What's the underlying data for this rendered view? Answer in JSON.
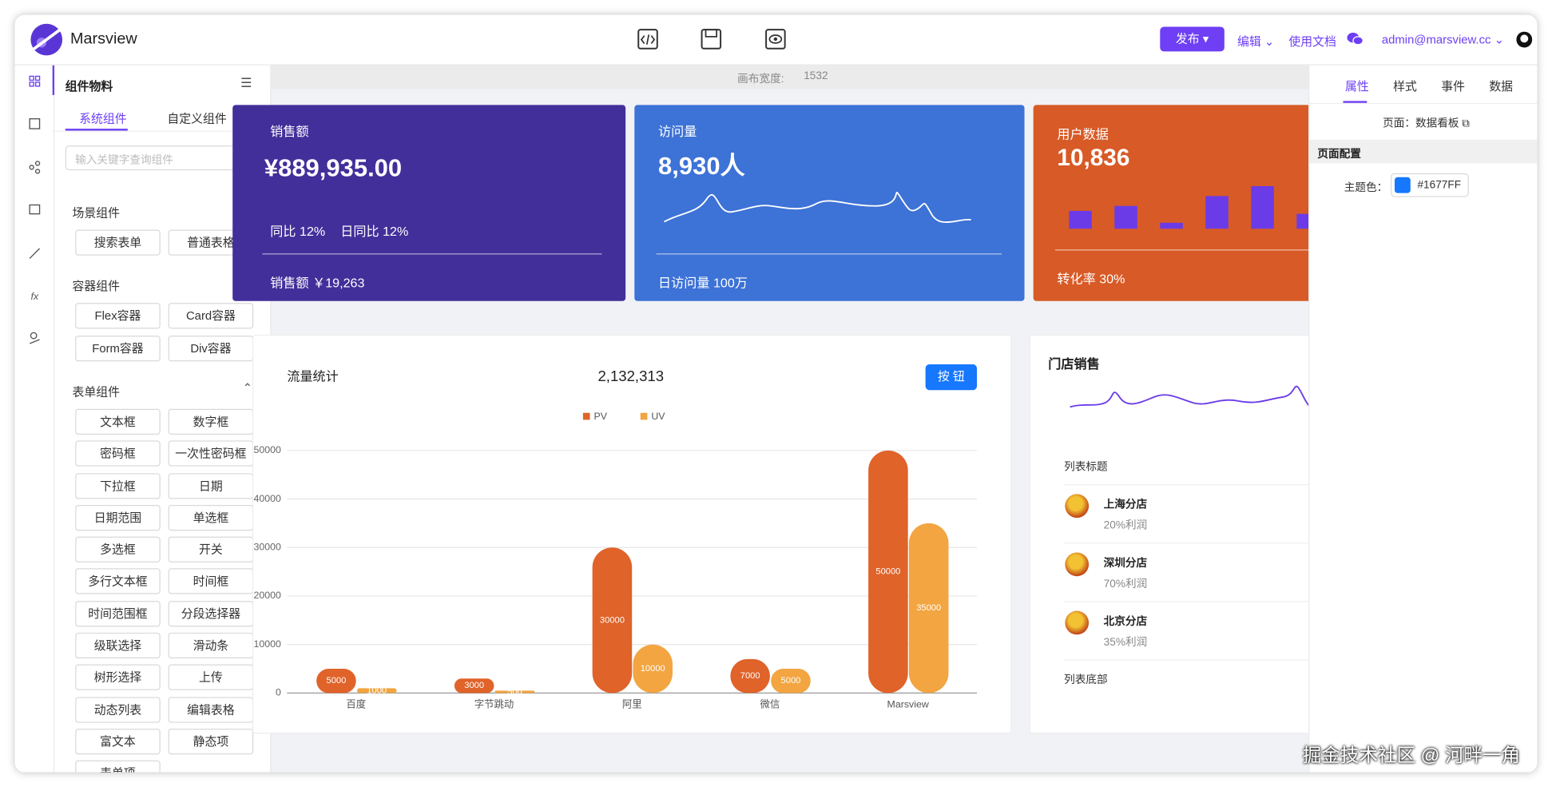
{
  "header": {
    "brand": "Marsview",
    "publish": "发布",
    "edit": "编辑",
    "docs": "使用文档",
    "user": "admin@marsview.cc"
  },
  "left_panel": {
    "title": "组件物料",
    "tabs": [
      "系统组件",
      "自定义组件"
    ],
    "search_placeholder": "输入关键字查询组件",
    "groups": [
      {
        "title": "场景组件",
        "items": [
          "搜索表单",
          "普通表格"
        ]
      },
      {
        "title": "容器组件",
        "items": [
          "Flex容器",
          "Card容器",
          "Form容器",
          "Div容器"
        ]
      },
      {
        "title": "表单组件",
        "items": [
          "文本框",
          "数字框",
          "密码框",
          "一次性密码框",
          "下拉框",
          "日期",
          "日期范围",
          "单选框",
          "多选框",
          "开关",
          "多行文本框",
          "时间框",
          "时间范围框",
          "分段选择器",
          "级联选择",
          "滑动条",
          "树形选择",
          "上传",
          "动态列表",
          "编辑表格",
          "富文本",
          "静态项",
          "表单项"
        ]
      }
    ]
  },
  "canvas": {
    "width_label": "画布宽度:",
    "width_value": "1532"
  },
  "cards": [
    {
      "title": "销售额",
      "value": "¥889,935.00",
      "stats": [
        "同比 12%",
        "日同比 12%"
      ],
      "footer": "销售额 ￥19,263"
    },
    {
      "title": "访问量",
      "value": "8,930人",
      "footer": "日访问量 100万"
    },
    {
      "title": "用户数据",
      "value": "10,836",
      "footer": "转化率 30%"
    }
  ],
  "chart_data": {
    "type": "bar",
    "title": "流量统计",
    "total": "2,132,313",
    "button": "按 钮",
    "categories": [
      "百度",
      "字节跳动",
      "阿里",
      "微信",
      "Marsview"
    ],
    "series": [
      {
        "name": "PV",
        "color": "#e0632a",
        "values": [
          5000,
          3000,
          30000,
          7000,
          50000
        ]
      },
      {
        "name": "UV",
        "color": "#f2a541",
        "values": [
          1000,
          500,
          10000,
          5000,
          35000
        ]
      }
    ],
    "ylim": [
      0,
      50000
    ],
    "yticks": [
      0,
      10000,
      20000,
      30000,
      40000,
      50000
    ],
    "grid": true
  },
  "store": {
    "title": "门店销售",
    "list_header": "列表标题",
    "items": [
      {
        "name": "上海分店",
        "desc": "20%利润"
      },
      {
        "name": "深圳分店",
        "desc": "70%利润"
      },
      {
        "name": "北京分店",
        "desc": "35%利润"
      }
    ],
    "list_footer": "列表底部"
  },
  "right_panel": {
    "tabs": [
      "属性",
      "样式",
      "事件",
      "数据"
    ],
    "page_label": "页面：",
    "page_name": "数据看板",
    "section": "页面配置",
    "theme_label": "主题色：",
    "theme_value": "#1677FF"
  },
  "watermark": "掘金技术社区 @ 河畔一角"
}
